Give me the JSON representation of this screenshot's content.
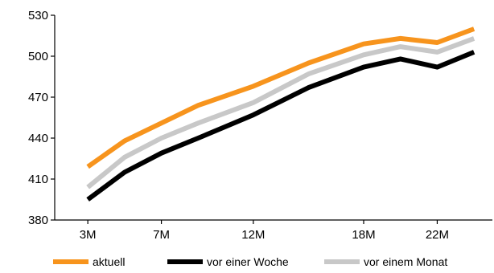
{
  "chart_data": {
    "type": "line",
    "title": "",
    "xlabel": "",
    "ylabel": "",
    "x": [
      3,
      5,
      7,
      9,
      12,
      15,
      18,
      20,
      22,
      24
    ],
    "x_tick_labels": [
      {
        "x": 3,
        "label": "3M"
      },
      {
        "x": 7,
        "label": "7M"
      },
      {
        "x": 12,
        "label": "12M"
      },
      {
        "x": 18,
        "label": "18M"
      },
      {
        "x": 22,
        "label": "22M"
      }
    ],
    "xlim": [
      1.2,
      25
    ],
    "ylim": [
      380,
      530
    ],
    "y_ticks": [
      380,
      410,
      440,
      470,
      500,
      530
    ],
    "grid": false,
    "legend_position": "bottom",
    "series": [
      {
        "name": "aktuell",
        "color": "#f7941d",
        "values": [
          419,
          438,
          451,
          464,
          478,
          495,
          509,
          513,
          510,
          520
        ]
      },
      {
        "name": "vor einem Monat",
        "color": "#c8c8c8",
        "values": [
          404,
          426,
          440,
          451,
          466,
          487,
          501,
          507,
          503,
          513
        ]
      },
      {
        "name": "vor einer Woche",
        "color": "#000000",
        "values": [
          395,
          415,
          429,
          440,
          457,
          477,
          492,
          498,
          492,
          503
        ]
      }
    ],
    "legend_order": [
      "aktuell",
      "vor einer Woche",
      "vor einem Monat"
    ]
  }
}
